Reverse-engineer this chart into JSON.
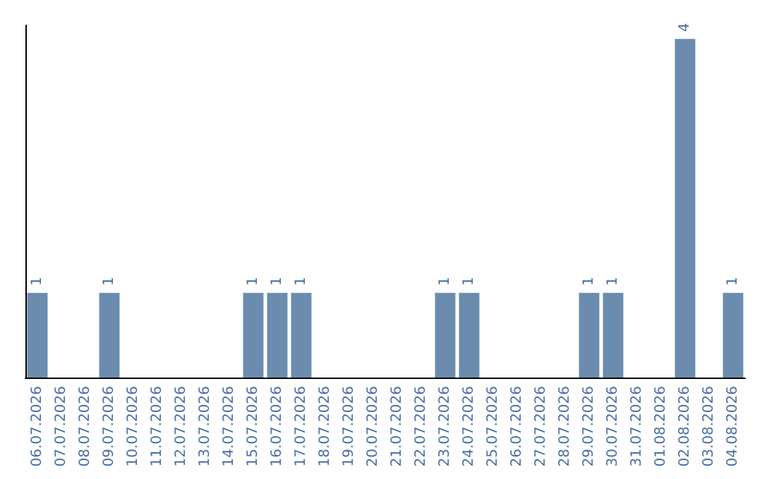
{
  "chart_data": {
    "type": "bar",
    "categories": [
      "06.07.2026",
      "07.07.2026",
      "08.07.2026",
      "09.07.2026",
      "10.07.2026",
      "11.07.2026",
      "12.07.2026",
      "13.07.2026",
      "14.07.2026",
      "15.07.2026",
      "16.07.2026",
      "17.07.2026",
      "18.07.2026",
      "19.07.2026",
      "20.07.2026",
      "21.07.2026",
      "22.07.2026",
      "23.07.2026",
      "24.07.2026",
      "25.07.2026",
      "26.07.2026",
      "27.07.2026",
      "28.07.2026",
      "29.07.2026",
      "30.07.2026",
      "31.07.2026",
      "01.08.2026",
      "02.08.2026",
      "03.08.2026",
      "04.08.2026"
    ],
    "values": [
      1,
      0,
      0,
      1,
      0,
      0,
      0,
      0,
      0,
      1,
      1,
      1,
      0,
      0,
      0,
      0,
      0,
      1,
      1,
      0,
      0,
      0,
      0,
      1,
      1,
      0,
      0,
      4,
      0,
      1
    ],
    "value_labels": [
      "1",
      null,
      null,
      "1",
      null,
      null,
      null,
      null,
      null,
      "1",
      "1",
      "1",
      null,
      null,
      null,
      null,
      null,
      "1",
      "1",
      null,
      null,
      null,
      null,
      "1",
      "1",
      null,
      null,
      "4",
      null,
      "1"
    ],
    "color": "#6b8cae"
  }
}
